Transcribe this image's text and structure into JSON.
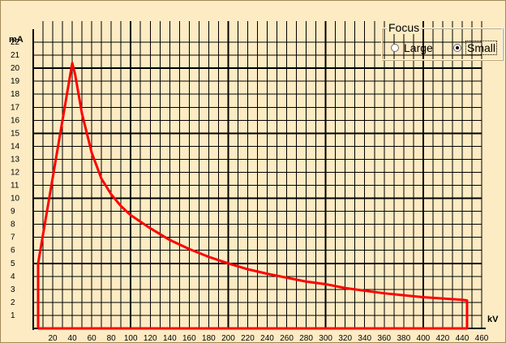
{
  "focus": {
    "legend": "Focus",
    "options": [
      {
        "label": "Large",
        "selected": false
      },
      {
        "label": "Small",
        "selected": true
      }
    ]
  },
  "chart_data": {
    "type": "line",
    "xlabel": "kV",
    "ylabel": "mA",
    "xlim": [
      0,
      460
    ],
    "ylim": [
      0,
      23
    ],
    "x_ticks": [
      20,
      40,
      60,
      80,
      100,
      120,
      140,
      160,
      180,
      200,
      220,
      240,
      260,
      280,
      300,
      320,
      340,
      360,
      380,
      400,
      420,
      440,
      460
    ],
    "y_ticks": [
      1,
      2,
      3,
      4,
      5,
      6,
      7,
      8,
      9,
      10,
      11,
      12,
      13,
      14,
      15,
      16,
      17,
      18,
      19,
      20,
      21,
      22
    ],
    "grid": true,
    "series": [
      {
        "color": "#ff0000",
        "x": [
          5,
          5,
          40,
          43,
          50,
          60,
          70,
          80,
          90,
          100,
          120,
          140,
          160,
          180,
          200,
          220,
          240,
          260,
          280,
          300,
          320,
          340,
          360,
          380,
          400,
          420,
          440,
          445,
          445,
          5
        ],
        "y": [
          0,
          5,
          20.4,
          19.5,
          16.5,
          13.5,
          11.5,
          10.3,
          9.4,
          8.7,
          7.7,
          6.8,
          6.1,
          5.5,
          5.0,
          4.55,
          4.2,
          3.9,
          3.6,
          3.4,
          3.1,
          2.9,
          2.7,
          2.55,
          2.4,
          2.3,
          2.2,
          2.15,
          0,
          0
        ]
      }
    ]
  }
}
